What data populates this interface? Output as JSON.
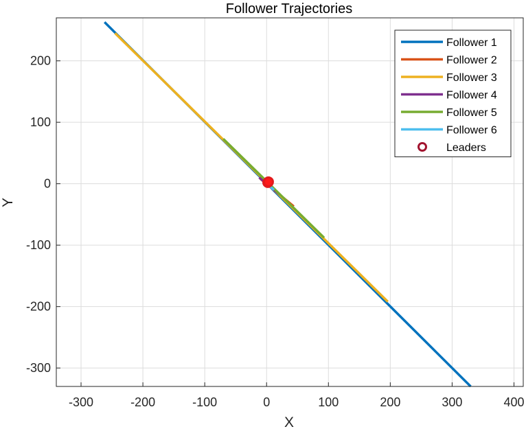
{
  "chart_data": {
    "type": "line",
    "title": "Follower Trajectories",
    "xlabel": "X",
    "ylabel": "Y",
    "xlim": [
      -340,
      415
    ],
    "ylim": [
      -330,
      270
    ],
    "xticks": [
      -300,
      -200,
      -100,
      0,
      100,
      200,
      300,
      400
    ],
    "yticks": [
      -300,
      -200,
      -100,
      0,
      100,
      200
    ],
    "grid": true,
    "legend_position": "top-right",
    "series": [
      {
        "name": "Follower 1",
        "color": "#0072BD",
        "x": [
          -262,
          330
        ],
        "y": [
          263,
          -330
        ]
      },
      {
        "name": "Follower 2",
        "color": "#D95319",
        "x": [
          -10,
          44
        ],
        "y": [
          8,
          -37
        ]
      },
      {
        "name": "Follower 3",
        "color": "#EDB120",
        "x": [
          -245,
          196
        ],
        "y": [
          245,
          -192
        ]
      },
      {
        "name": "Follower 4",
        "color": "#7E2F8E",
        "x": [
          -12,
          22
        ],
        "y": [
          10,
          -18
        ]
      },
      {
        "name": "Follower 5",
        "color": "#77AC30",
        "x": [
          -70,
          93
        ],
        "y": [
          73,
          -88
        ]
      },
      {
        "name": "Follower 6",
        "color": "#4DBEEE",
        "x": [
          -5,
          12
        ],
        "y": [
          4,
          -10
        ]
      }
    ],
    "leaders": {
      "name": "Leaders",
      "color": "#A2142F",
      "marker": "circle",
      "x": [
        2,
        3
      ],
      "y": [
        2,
        3
      ]
    }
  }
}
